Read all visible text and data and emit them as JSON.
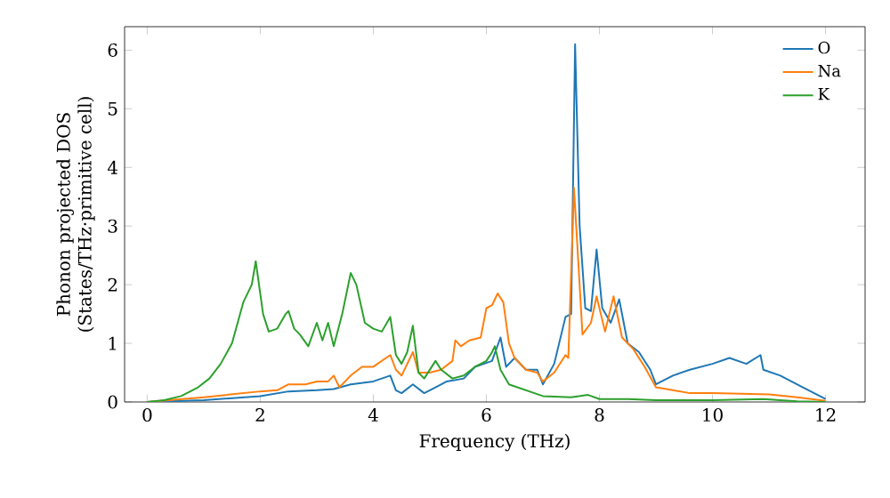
{
  "chart_data": {
    "type": "line",
    "xlabel": "Frequency (THz)",
    "ylabel": "Phonon projected DOS\n(States/THz·primitive cell)",
    "xlim": [
      -0.4,
      12.7
    ],
    "ylim": [
      0,
      6.4
    ],
    "xticks": [
      0,
      2,
      4,
      6,
      8,
      10,
      12
    ],
    "yticks": [
      0,
      1,
      2,
      3,
      4,
      5,
      6
    ],
    "legend": "top right",
    "series": [
      {
        "name": "O",
        "color": "#1f77b4",
        "x": [
          0,
          1,
          2,
          2.5,
          3,
          3.3,
          3.6,
          4.0,
          4.3,
          4.4,
          4.5,
          4.7,
          4.9,
          5.1,
          5.3,
          5.6,
          5.8,
          6.1,
          6.25,
          6.35,
          6.5,
          6.7,
          6.9,
          7.0,
          7.2,
          7.4,
          7.5,
          7.57,
          7.65,
          7.75,
          7.85,
          7.95,
          8.05,
          8.2,
          8.35,
          8.5,
          8.7,
          8.9,
          9.0,
          9.3,
          9.6,
          10.0,
          10.3,
          10.6,
          10.85,
          10.9,
          11.2,
          11.6,
          12.0
        ],
        "values": [
          0,
          0.03,
          0.1,
          0.18,
          0.2,
          0.22,
          0.3,
          0.35,
          0.45,
          0.2,
          0.15,
          0.3,
          0.15,
          0.25,
          0.35,
          0.4,
          0.6,
          0.7,
          1.1,
          0.6,
          0.75,
          0.55,
          0.55,
          0.3,
          0.65,
          1.45,
          1.5,
          6.1,
          3.0,
          1.6,
          1.55,
          2.6,
          1.6,
          1.35,
          1.75,
          1.0,
          0.85,
          0.55,
          0.3,
          0.45,
          0.55,
          0.65,
          0.75,
          0.65,
          0.8,
          0.55,
          0.45,
          0.25,
          0.05
        ]
      },
      {
        "name": "Na",
        "color": "#ff7f0e",
        "x": [
          0,
          1,
          1.5,
          2,
          2.3,
          2.5,
          2.8,
          3.0,
          3.2,
          3.3,
          3.4,
          3.6,
          3.8,
          4.0,
          4.3,
          4.4,
          4.5,
          4.7,
          4.8,
          5.0,
          5.2,
          5.4,
          5.45,
          5.55,
          5.7,
          5.9,
          6.0,
          6.1,
          6.2,
          6.3,
          6.4,
          6.5,
          6.7,
          6.9,
          7.0,
          7.2,
          7.4,
          7.45,
          7.55,
          7.65,
          7.7,
          7.85,
          7.95,
          8.1,
          8.25,
          8.4,
          8.6,
          8.8,
          9.0,
          9.3,
          9.6,
          10,
          11,
          11.5,
          12
        ],
        "values": [
          0,
          0.08,
          0.13,
          0.18,
          0.2,
          0.3,
          0.3,
          0.35,
          0.35,
          0.45,
          0.25,
          0.45,
          0.6,
          0.6,
          0.8,
          0.55,
          0.45,
          0.85,
          0.5,
          0.5,
          0.55,
          0.7,
          1.05,
          0.95,
          1.05,
          1.1,
          1.6,
          1.65,
          1.85,
          1.7,
          1.0,
          0.75,
          0.55,
          0.5,
          0.35,
          0.5,
          0.8,
          0.75,
          3.65,
          2.0,
          1.15,
          1.35,
          1.8,
          1.2,
          1.8,
          1.1,
          0.9,
          0.6,
          0.25,
          0.2,
          0.15,
          0.15,
          0.13,
          0.08,
          0.02
        ]
      },
      {
        "name": "K",
        "color": "#2ca02c",
        "x": [
          0,
          0.3,
          0.6,
          0.9,
          1.1,
          1.3,
          1.5,
          1.7,
          1.85,
          1.92,
          2.05,
          2.15,
          2.3,
          2.45,
          2.5,
          2.6,
          2.7,
          2.85,
          3.0,
          3.1,
          3.2,
          3.3,
          3.45,
          3.6,
          3.7,
          3.85,
          4.0,
          4.15,
          4.3,
          4.4,
          4.5,
          4.6,
          4.7,
          4.8,
          4.9,
          5.1,
          5.2,
          5.4,
          5.6,
          5.8,
          6.0,
          6.1,
          6.15,
          6.25,
          6.4,
          6.7,
          7.0,
          7.5,
          7.8,
          8.0,
          8.5,
          9,
          10,
          10.9,
          11.5,
          12
        ],
        "values": [
          0,
          0.03,
          0.1,
          0.25,
          0.4,
          0.65,
          1.0,
          1.7,
          2.0,
          2.4,
          1.5,
          1.2,
          1.25,
          1.5,
          1.55,
          1.25,
          1.15,
          0.95,
          1.35,
          1.05,
          1.35,
          0.95,
          1.5,
          2.2,
          2.0,
          1.35,
          1.25,
          1.2,
          1.45,
          0.8,
          0.65,
          0.85,
          1.3,
          0.5,
          0.4,
          0.7,
          0.55,
          0.4,
          0.45,
          0.6,
          0.7,
          0.85,
          0.95,
          0.55,
          0.3,
          0.2,
          0.1,
          0.08,
          0.12,
          0.05,
          0.05,
          0.03,
          0.03,
          0.05,
          0.01,
          0
        ]
      }
    ]
  }
}
